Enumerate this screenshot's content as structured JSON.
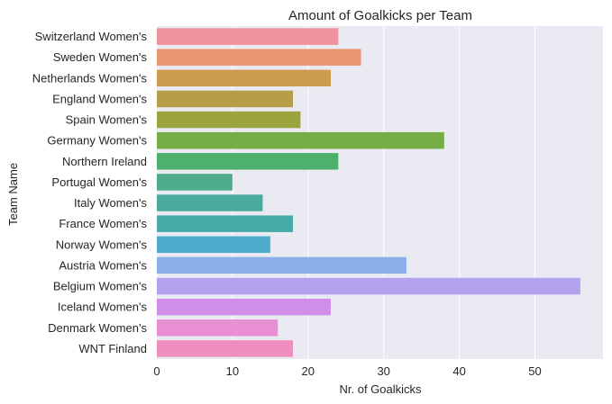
{
  "chart_data": {
    "type": "bar",
    "orientation": "horizontal",
    "title": "Amount of Goalkicks per Team",
    "xlabel": "Nr. of Goalkicks",
    "ylabel": "Team Name",
    "xlim": [
      0,
      59
    ],
    "xticks": [
      0,
      10,
      20,
      30,
      40,
      50
    ],
    "grid": true,
    "background": "#EAEAF2",
    "categories": [
      "Switzerland Women's",
      "Sweden Women's",
      "Netherlands Women's",
      "England Women's",
      "Spain Women's",
      "Germany Women's",
      "Northern Ireland",
      "Portugal Women's",
      "Italy Women's",
      "France Women's",
      "Norway Women's",
      "Austria Women's",
      "Belgium Women's",
      "Iceland Women's",
      "Denmark Women's",
      "WNT Finland"
    ],
    "values": [
      24,
      27,
      23,
      18,
      19,
      38,
      24,
      10,
      14,
      18,
      15,
      33,
      56,
      23,
      16,
      18
    ],
    "colors": [
      "#F0929E",
      "#EA9570",
      "#CD9B4E",
      "#B59E45",
      "#9CA43F",
      "#76AD45",
      "#4DB06C",
      "#4CAC8C",
      "#4AAA9C",
      "#49AAAA",
      "#4EABCC",
      "#8AAEE8",
      "#B3A2EE",
      "#D18EE9",
      "#E990D4",
      "#EE8EBE"
    ]
  }
}
